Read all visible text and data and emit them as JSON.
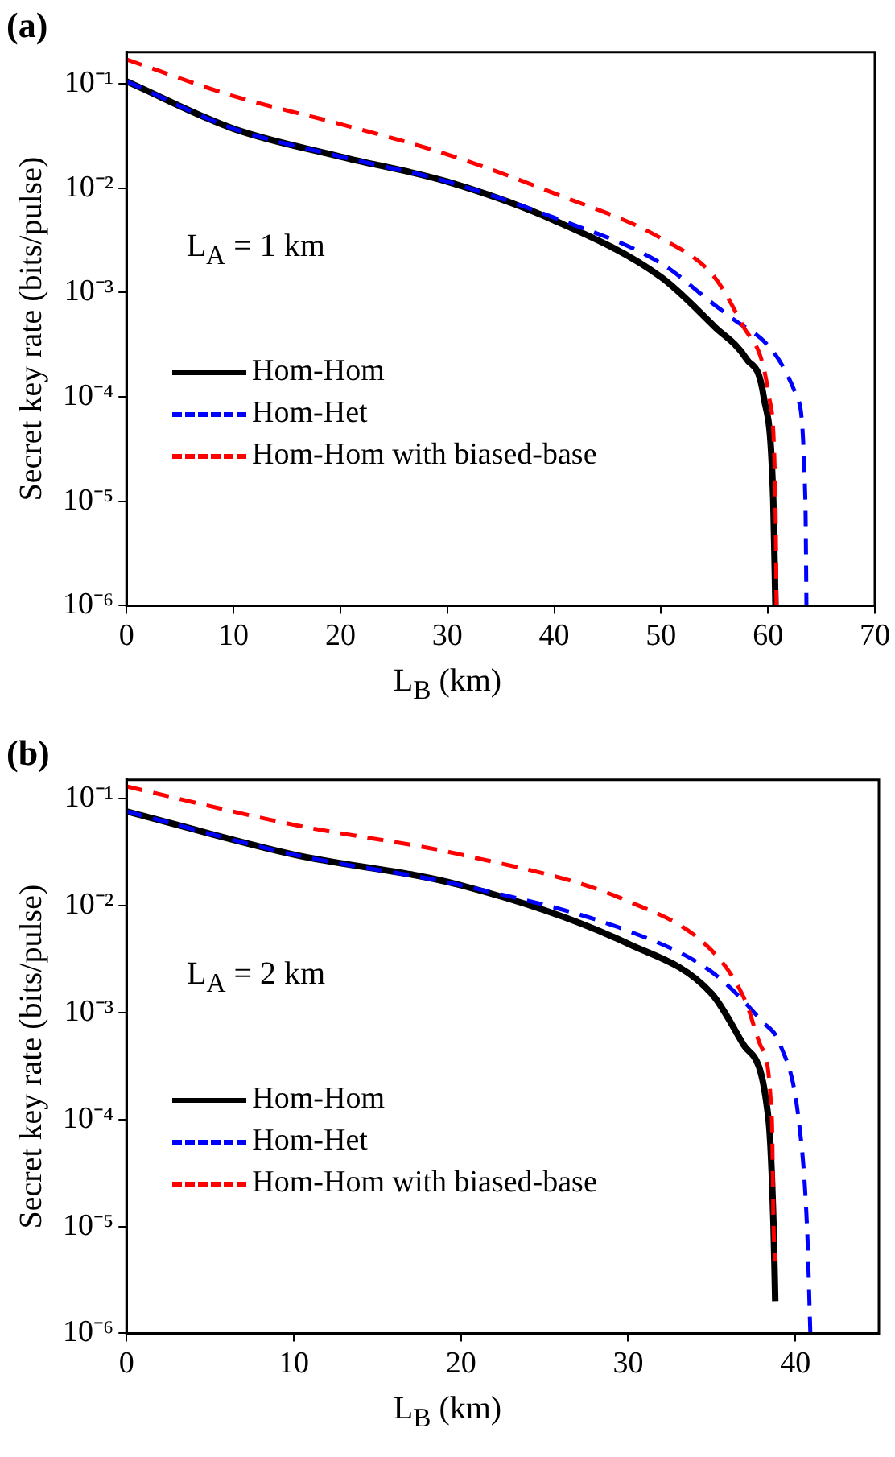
{
  "chart_data": [
    {
      "type": "line",
      "title": "(a)",
      "xlabel": "L$_{B}$ (km)",
      "ylabel": "Secret key rate (bits/pulse)",
      "annotations": [
        "L$_{A}$ = 1 km"
      ],
      "log": "y",
      "xlim": [
        0,
        70
      ],
      "xticks": [
        0,
        10,
        20,
        30,
        40,
        50,
        60,
        70
      ],
      "ylim": [
        1e-06,
        0.2
      ],
      "yticks": [
        {
          "value": 1e-06,
          "label": "10⁻⁶"
        },
        {
          "value": 1e-05,
          "label": "10⁻⁵"
        },
        {
          "value": 0.0001,
          "label": "10⁻⁴"
        },
        {
          "value": 0.001,
          "label": "10⁻³"
        },
        {
          "value": 0.01,
          "label": "10⁻²"
        },
        {
          "value": 0.1,
          "label": "10⁻¹"
        }
      ],
      "grid": false,
      "legend": "left",
      "marker": "none",
      "series": [
        {
          "name": "Hom-Hom",
          "color": "#000000",
          "line_style": "solid",
          "x": [
            0,
            10,
            20,
            30,
            40,
            50,
            55,
            58,
            59.6,
            60.5,
            60.7
          ],
          "values": [
            0.105,
            0.037,
            0.02,
            0.0115,
            0.0049,
            0.0014,
            0.00047,
            0.00023,
            0.0001,
            1e-05,
            1e-06
          ]
        },
        {
          "name": "Hom-Het",
          "color": "#0000ff",
          "line_style": "dashed",
          "x": [
            0,
            10,
            20,
            30,
            40,
            50,
            55,
            57.8,
            62.7,
            63.5,
            63.6
          ],
          "values": [
            0.105,
            0.037,
            0.02,
            0.0115,
            0.0052,
            0.0019,
            0.00076,
            0.00047,
            0.0001,
            1e-05,
            1e-06
          ]
        },
        {
          "name": "Hom-Hom with biased-base",
          "color": "#ff0000",
          "line_style": "dashed",
          "x": [
            0,
            10,
            20,
            30,
            40,
            50,
            55,
            57.7,
            60.1,
            60.7,
            60.8
          ],
          "values": [
            0.17,
            0.076,
            0.041,
            0.021,
            0.0089,
            0.0033,
            0.0014,
            0.00047,
            0.0001,
            1e-05,
            1e-06
          ]
        }
      ]
    },
    {
      "type": "line",
      "title": "(b)",
      "xlabel": "L$_{B}$ (km)",
      "ylabel": "Secret key rate (bits/pulse)",
      "annotations": [
        "L$_{A}$ = 2 km"
      ],
      "log": "y",
      "xlim": [
        0,
        45
      ],
      "xticks": [
        0,
        10,
        20,
        30,
        40
      ],
      "ylim": [
        1e-06,
        0.15
      ],
      "yticks": [
        {
          "value": 1e-06,
          "label": "10⁻⁶"
        },
        {
          "value": 1e-05,
          "label": "10⁻⁵"
        },
        {
          "value": 0.0001,
          "label": "10⁻⁴"
        },
        {
          "value": 0.001,
          "label": "10⁻³"
        },
        {
          "value": 0.01,
          "label": "10⁻²"
        },
        {
          "value": 0.1,
          "label": "10⁻¹"
        }
      ],
      "grid": false,
      "legend": "left",
      "marker": "none",
      "series": [
        {
          "name": "Hom-Hom",
          "color": "#000000",
          "line_style": "solid",
          "x": [
            0,
            10,
            20,
            30,
            35,
            36.9,
            38.4,
            38.7,
            38.8
          ],
          "values": [
            0.076,
            0.03,
            0.0155,
            0.0044,
            0.0015,
            0.0005,
            0.0001,
            1e-05,
            2e-06
          ]
        },
        {
          "name": "Hom-Het",
          "color": "#0000ff",
          "line_style": "dashed",
          "x": [
            0,
            10,
            20,
            30,
            35,
            38,
            39.1,
            40.2,
            40.7,
            40.9
          ],
          "values": [
            0.076,
            0.03,
            0.0155,
            0.0058,
            0.0024,
            0.00083,
            0.0005,
            0.0001,
            1e-05,
            1e-06
          ]
        },
        {
          "name": "Hom-Hom with biased-base",
          "color": "#ff0000",
          "line_style": "dashed",
          "x": [
            0,
            10,
            20,
            30,
            35,
            37,
            37.9,
            38.6,
            38.7,
            38.8
          ],
          "values": [
            0.13,
            0.057,
            0.03,
            0.011,
            0.0038,
            0.0013,
            0.0005,
            0.0001,
            1e-05,
            4.7e-06
          ]
        }
      ]
    }
  ]
}
